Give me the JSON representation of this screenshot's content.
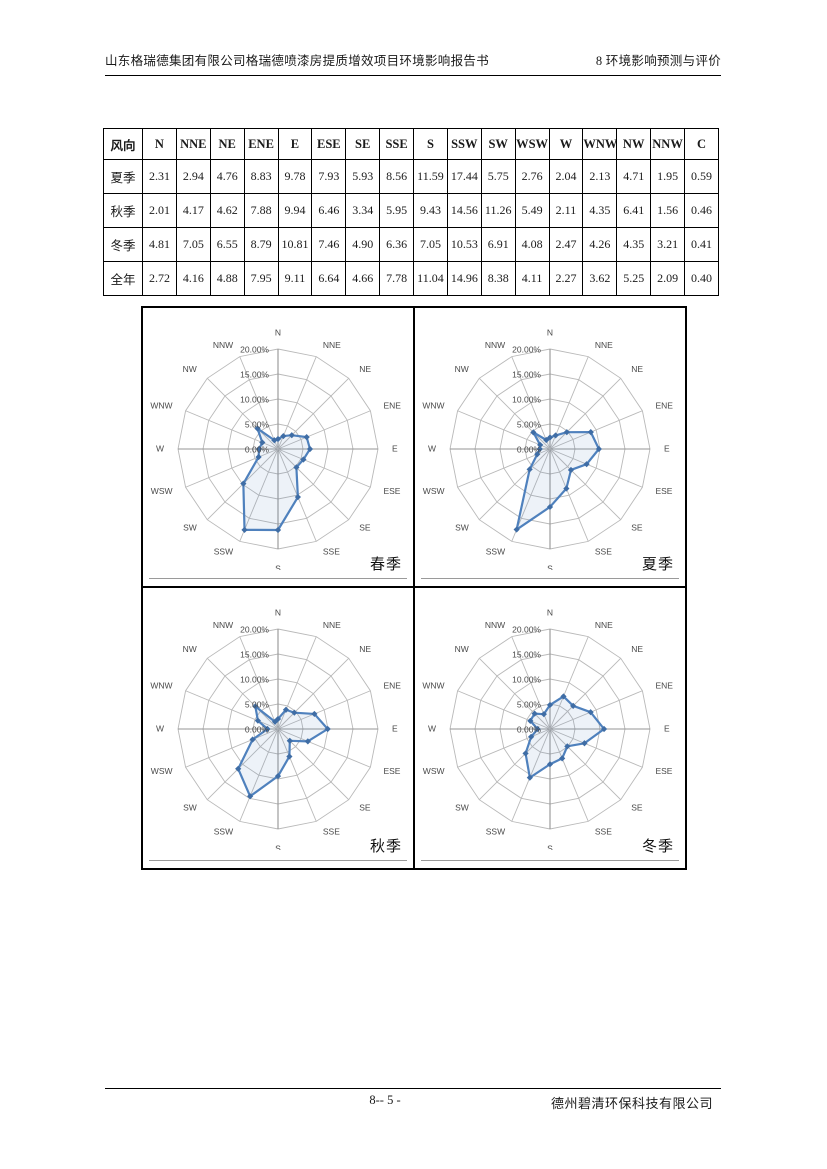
{
  "header": {
    "left_title": "山东格瑞德集团有限公司格瑞德喷漆房提质增效项目环境影响报告书",
    "right_title": "8 环境影响预测与评价"
  },
  "wind_table": {
    "columns": [
      "风向",
      "N",
      "NNE",
      "NE",
      "ENE",
      "E",
      "ESE",
      "SE",
      "SSE",
      "S",
      "SSW",
      "SW",
      "WSW",
      "W",
      "WNW",
      "NW",
      "NNW",
      "C"
    ],
    "rows": [
      {
        "label": "夏季",
        "values": [
          "2.31",
          "2.94",
          "4.76",
          "8.83",
          "9.78",
          "7.93",
          "5.93",
          "8.56",
          "11.59",
          "17.44",
          "5.75",
          "2.76",
          "2.04",
          "2.13",
          "4.71",
          "1.95",
          "0.59"
        ]
      },
      {
        "label": "秋季",
        "values": [
          "2.01",
          "4.17",
          "4.62",
          "7.88",
          "9.94",
          "6.46",
          "3.34",
          "5.95",
          "9.43",
          "14.56",
          "11.26",
          "5.49",
          "2.11",
          "4.35",
          "6.41",
          "1.56",
          "0.46"
        ]
      },
      {
        "label": "冬季",
        "values": [
          "4.81",
          "7.05",
          "6.55",
          "8.79",
          "10.81",
          "7.46",
          "4.90",
          "6.36",
          "7.05",
          "10.53",
          "6.91",
          "4.08",
          "2.47",
          "4.26",
          "4.35",
          "3.21",
          "0.41"
        ]
      },
      {
        "label": "全年",
        "values": [
          "2.72",
          "4.16",
          "4.88",
          "7.95",
          "9.11",
          "6.64",
          "4.66",
          "7.78",
          "11.04",
          "14.96",
          "8.38",
          "4.11",
          "2.27",
          "3.62",
          "5.25",
          "2.09",
          "0.40"
        ]
      }
    ]
  },
  "chart_style": {
    "line_color": "#4f81bd",
    "marker_color": "#3f6da5",
    "fill_color": "rgba(79,129,189,0.10)",
    "grid_color": "#b9b9b9",
    "axis_color": "#949494",
    "label_color": "#4a4a4a",
    "rings": 4
  },
  "chart_data": [
    {
      "type": "radar",
      "title": "春季",
      "categories": [
        "N",
        "NNE",
        "NE",
        "ENE",
        "E",
        "ESE",
        "SE",
        "SSE",
        "S",
        "SSW",
        "SW",
        "WSW",
        "W",
        "WNW",
        "NW",
        "NNW"
      ],
      "values": [
        2.0,
        2.8,
        3.9,
        6.2,
        6.4,
        5.5,
        5.2,
        10.4,
        16.2,
        17.5,
        9.8,
        4.2,
        3.8,
        3.4,
        5.8,
        1.9
      ],
      "values_estimated_from_plot": true,
      "radial_ticks": [
        "0.00%",
        "5.00%",
        "10.00%",
        "15.00%",
        "20.00%"
      ],
      "rlim": [
        0,
        20
      ],
      "grid": true,
      "legend": "none"
    },
    {
      "type": "radar",
      "title": "夏季",
      "categories": [
        "N",
        "NNE",
        "NE",
        "ENE",
        "E",
        "ESE",
        "SE",
        "SSE",
        "S",
        "SSW",
        "SW",
        "WSW",
        "W",
        "WNW",
        "NW",
        "NNW"
      ],
      "values": [
        2.31,
        2.94,
        4.76,
        8.83,
        9.78,
        7.93,
        5.93,
        8.56,
        11.59,
        17.44,
        5.75,
        2.76,
        2.04,
        2.13,
        4.71,
        1.95
      ],
      "radial_ticks": [
        "0.00%",
        "5.00%",
        "10.00%",
        "15.00%",
        "20.00%"
      ],
      "rlim": [
        0,
        20
      ],
      "grid": true,
      "legend": "none"
    },
    {
      "type": "radar",
      "title": "秋季",
      "categories": [
        "N",
        "NNE",
        "NE",
        "ENE",
        "E",
        "ESE",
        "SE",
        "SSE",
        "S",
        "SSW",
        "SW",
        "WSW",
        "W",
        "WNW",
        "NW",
        "NNW"
      ],
      "values": [
        2.01,
        4.17,
        4.62,
        7.88,
        9.94,
        6.46,
        3.34,
        5.95,
        9.43,
        14.56,
        11.26,
        5.49,
        2.11,
        4.35,
        6.41,
        1.56
      ],
      "radial_ticks": [
        "0.00%",
        "5.00%",
        "10.00%",
        "15.00%",
        "20.00%"
      ],
      "rlim": [
        0,
        20
      ],
      "grid": true,
      "legend": "none"
    },
    {
      "type": "radar",
      "title": "冬季",
      "categories": [
        "N",
        "NNE",
        "NE",
        "ENE",
        "E",
        "ESE",
        "SE",
        "SSE",
        "S",
        "SSW",
        "SW",
        "WSW",
        "W",
        "WNW",
        "NW",
        "NNW"
      ],
      "values": [
        4.81,
        7.05,
        6.55,
        8.79,
        10.81,
        7.46,
        4.9,
        6.36,
        7.05,
        10.53,
        6.91,
        4.08,
        2.47,
        4.26,
        4.35,
        3.21
      ],
      "radial_ticks": [
        "0.00%",
        "5.00%",
        "10.00%",
        "15.00%",
        "20.00%"
      ],
      "rlim": [
        0,
        20
      ],
      "grid": true,
      "legend": "none"
    }
  ],
  "footer": {
    "page_number": "8-- 5 -",
    "company": "德州碧清环保科技有限公司"
  }
}
